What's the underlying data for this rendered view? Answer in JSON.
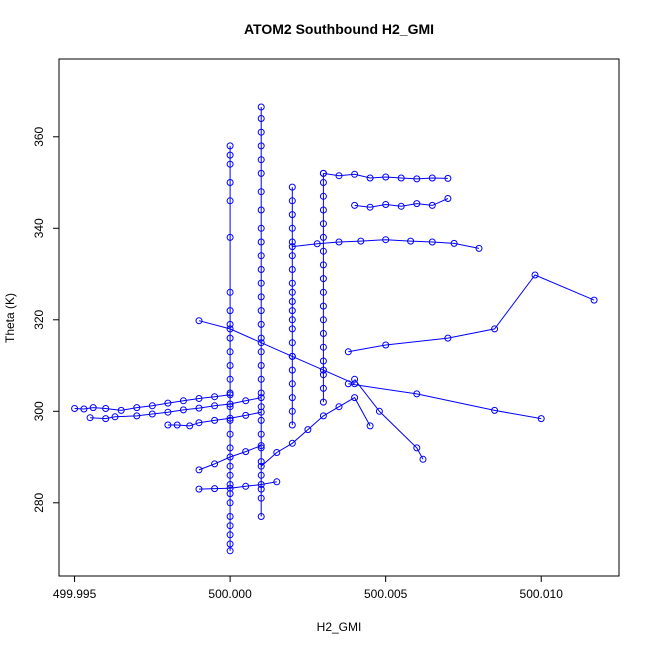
{
  "chart_data": {
    "type": "scatter",
    "title": "ATOM2 Southbound H2_GMI",
    "xlabel": "H2_GMI",
    "ylabel": "Theta (K)",
    "xlim": [
      499.9945,
      500.0125
    ],
    "ylim": [
      264,
      377
    ],
    "xticks": [
      499.995,
      500.0,
      500.005,
      500.01
    ],
    "xtick_labels": [
      "499.995",
      "500.000",
      "500.005",
      "500.010"
    ],
    "yticks": [
      280,
      300,
      320,
      340,
      360
    ],
    "ytick_labels": [
      "280",
      "300",
      "320",
      "340",
      "360"
    ],
    "grid": false,
    "point_color": "#0000ff",
    "series": [
      {
        "style": "line+points",
        "x": [
          500.0,
          500.0,
          500.0,
          500.0,
          500.0,
          500.0,
          500.0,
          500.0,
          500.0,
          500.0,
          500.0,
          500.0,
          500.0,
          500.0,
          500.0,
          500.0,
          500.0,
          500.0,
          500.0,
          500.0,
          500.0,
          500.0,
          500.0,
          500.0,
          500.0,
          500.0,
          500.0,
          500.0
        ],
        "y": [
          269.5,
          271,
          273,
          275,
          277,
          280,
          282,
          284,
          286,
          288,
          292,
          295,
          298,
          301,
          304,
          307,
          310,
          313,
          316,
          319,
          322,
          326,
          338,
          346,
          350,
          354,
          356,
          358
        ]
      },
      {
        "style": "line+points",
        "x": [
          500.001,
          500.001,
          500.001,
          500.001,
          500.001,
          500.001,
          500.001,
          500.001,
          500.001,
          500.001,
          500.001,
          500.001,
          500.001,
          500.001,
          500.001,
          500.001,
          500.001,
          500.001,
          500.001,
          500.001,
          500.001,
          500.001,
          500.001,
          500.001,
          500.001,
          500.001,
          500.001,
          500.001,
          500.001,
          500.001
        ],
        "y": [
          277,
          281,
          283,
          286,
          289,
          292,
          295,
          298,
          301,
          304,
          307,
          310,
          313,
          316,
          319,
          322,
          325,
          328,
          331,
          334,
          337,
          340,
          344,
          348,
          352,
          355,
          358,
          361,
          364,
          366.5
        ]
      },
      {
        "style": "line+points",
        "x": [
          500.002,
          500.002,
          500.002,
          500.002,
          500.002,
          500.002,
          500.002,
          500.002,
          500.002,
          500.002,
          500.002,
          500.002,
          500.002,
          500.002,
          500.002,
          500.002,
          500.002,
          500.002,
          500.002,
          500.002
        ],
        "y": [
          297,
          300,
          303,
          306,
          309,
          312,
          315,
          318,
          320,
          322,
          324,
          326,
          328,
          331,
          334,
          337,
          340,
          343,
          346,
          349
        ]
      },
      {
        "style": "line+points",
        "x": [
          500.003,
          500.003,
          500.003,
          500.003,
          500.003,
          500.003,
          500.003,
          500.003,
          500.003,
          500.003,
          500.003,
          500.003,
          500.003,
          500.003,
          500.003,
          500.003,
          500.003,
          500.003
        ],
        "y": [
          302,
          305,
          308,
          311,
          314,
          317,
          320,
          323,
          326,
          329,
          332,
          335,
          338,
          341,
          344,
          347,
          350,
          352
        ]
      },
      {
        "style": "line+points",
        "x": [
          499.995,
          499.9953,
          499.9956,
          499.996,
          499.9965,
          499.997,
          499.9975,
          499.998,
          499.9985,
          499.999,
          499.9995,
          500.0
        ],
        "y": [
          300.6,
          300.5,
          300.8,
          300.6,
          300.2,
          300.8,
          301.2,
          301.8,
          302.3,
          302.8,
          303.2,
          303.6
        ]
      },
      {
        "style": "line+points",
        "x": [
          499.9955,
          499.996,
          499.9963,
          499.997,
          499.9975,
          499.998,
          499.9985,
          499.999,
          499.9995,
          500.0,
          500.0005,
          500.001
        ],
        "y": [
          298.6,
          298.4,
          298.8,
          299.0,
          299.4,
          299.8,
          300.3,
          300.7,
          301.2,
          301.6,
          302.3,
          303.0
        ]
      },
      {
        "style": "line+points",
        "x": [
          499.998,
          499.9983,
          499.9987,
          499.999,
          499.9995,
          500.0,
          500.0005,
          500.001
        ],
        "y": [
          297.0,
          297.0,
          296.8,
          297.5,
          298.0,
          298.5,
          299.1,
          299.8
        ]
      },
      {
        "style": "line+points",
        "x": [
          500.0038,
          500.005,
          500.007,
          500.0085,
          500.0098,
          500.0117
        ],
        "y": [
          313,
          314.5,
          316,
          318,
          329.8,
          324.3
        ]
      },
      {
        "style": "line+points",
        "x": [
          500.0038,
          500.006,
          500.0085,
          500.01
        ],
        "y": [
          306,
          303.8,
          300.2,
          298.4
        ]
      },
      {
        "style": "line+points",
        "x": [
          500.004,
          500.0048,
          500.006,
          500.0062
        ],
        "y": [
          307,
          300,
          292,
          289.5
        ]
      },
      {
        "style": "line+points",
        "x": [
          500.003,
          500.0035,
          500.004,
          500.0045,
          500.005,
          500.0055,
          500.006,
          500.0065,
          500.007
        ],
        "y": [
          352,
          351.5,
          351.8,
          351,
          351.2,
          351.0,
          350.8,
          351.0,
          350.9
        ]
      },
      {
        "style": "line+points",
        "x": [
          500.004,
          500.0045,
          500.005,
          500.0055,
          500.006,
          500.0065,
          500.007
        ],
        "y": [
          345,
          344.6,
          345.2,
          344.8,
          345.4,
          345.0,
          346.5
        ]
      },
      {
        "style": "line+points",
        "x": [
          500.002,
          500.0028,
          500.0035,
          500.0042,
          500.005,
          500.0058,
          500.0065,
          500.0072,
          500.008
        ],
        "y": [
          336,
          336.6,
          337,
          337.2,
          337.5,
          337.2,
          337.0,
          336.7,
          335.6
        ]
      },
      {
        "style": "line+points",
        "x": [
          499.999,
          500.0,
          500.001,
          500.002,
          500.003,
          500.004
        ],
        "y": [
          319.8,
          318,
          315,
          312,
          309,
          306
        ]
      },
      {
        "style": "line+points",
        "x": [
          499.999,
          499.9995,
          500.0,
          500.0005,
          500.001
        ],
        "y": [
          287.2,
          288.5,
          290,
          291.2,
          292.5
        ]
      },
      {
        "style": "line+points",
        "x": [
          499.999,
          499.9995,
          500.0,
          500.0005,
          500.001,
          500.0015
        ],
        "y": [
          283.0,
          283.1,
          283.2,
          283.6,
          284.0,
          284.6
        ]
      },
      {
        "style": "line+points",
        "x": [
          500.001,
          500.0015,
          500.002,
          500.0025,
          500.003,
          500.0035,
          500.004,
          500.0045
        ],
        "y": [
          288,
          291,
          293,
          296,
          299,
          301,
          303,
          296.8
        ]
      }
    ]
  }
}
